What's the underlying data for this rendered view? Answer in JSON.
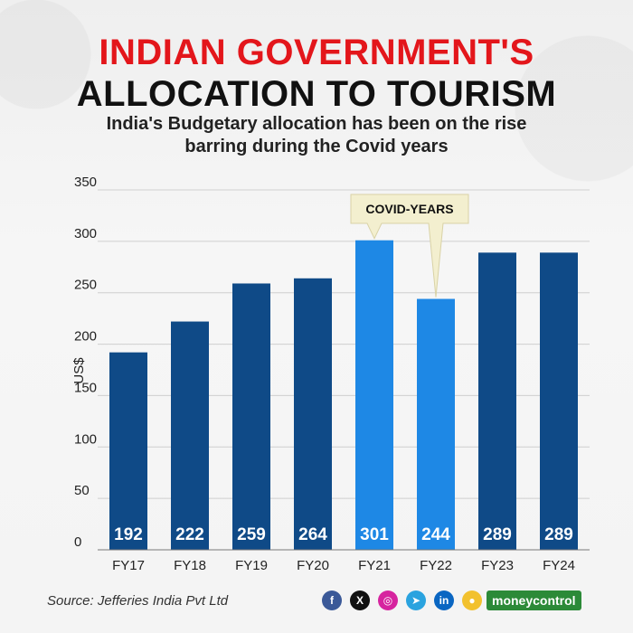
{
  "header": {
    "title_line1": "INDIAN GOVERNMENT'S",
    "title_line2": "ALLOCATION TO TOURISM",
    "subtitle": "India's Budgetary allocation has been on the rise barring during the Covid years"
  },
  "chart_data": {
    "type": "bar",
    "title": "INDIAN GOVERNMENT'S ALLOCATION TO TOURISM",
    "subtitle": "India's Budgetary allocation has been on the rise barring during the Covid years",
    "xlabel": "",
    "ylabel": "US$",
    "categories": [
      "FY17",
      "FY18",
      "FY19",
      "FY20",
      "FY21",
      "FY22",
      "FY23",
      "FY24"
    ],
    "values": [
      192,
      222,
      259,
      264,
      301,
      244,
      289,
      289
    ],
    "highlight": [
      "FY21",
      "FY22"
    ],
    "ylim": [
      0,
      350
    ],
    "yticks": [
      0,
      50,
      100,
      150,
      200,
      250,
      300,
      350
    ],
    "grid": true,
    "annotation": "COVID-YEARS",
    "colors": {
      "normal": "#0f4a87",
      "highlight": "#1e88e5",
      "grid": "#cfcfcf",
      "annotation_bg": "#f3efcf"
    }
  },
  "footer": {
    "source": "Source: Jefferies India Pvt Ltd",
    "social_icons": [
      {
        "name": "facebook-icon",
        "glyph": "f",
        "color": "#3b5998"
      },
      {
        "name": "x-twitter-icon",
        "glyph": "X",
        "color": "#111111"
      },
      {
        "name": "instagram-icon",
        "glyph": "◎",
        "color": "#d6249f"
      },
      {
        "name": "telegram-icon",
        "glyph": "➤",
        "color": "#2aa3df"
      },
      {
        "name": "linkedin-icon",
        "glyph": "in",
        "color": "#0a66c2"
      },
      {
        "name": "koo-icon",
        "glyph": "●",
        "color": "#f2c12e"
      }
    ],
    "brand_money": "money",
    "brand_control": "control"
  }
}
